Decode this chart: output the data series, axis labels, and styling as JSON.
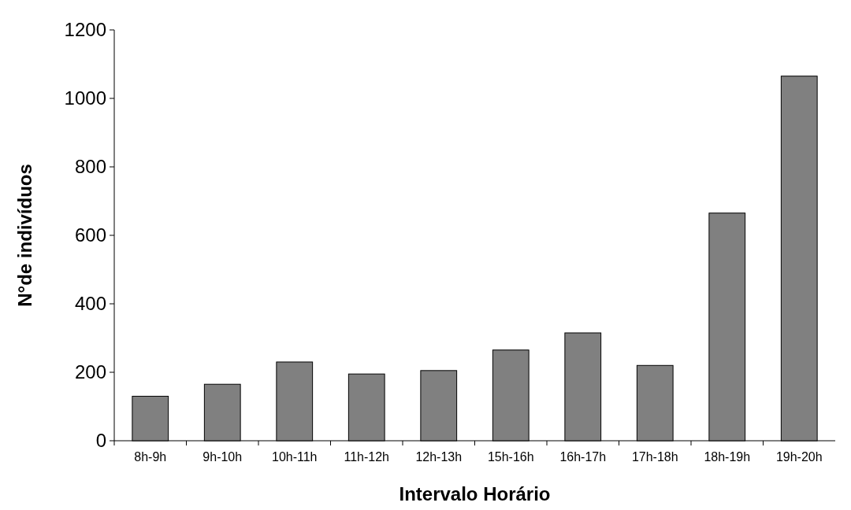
{
  "chart_data": {
    "type": "bar",
    "xlabel": "Intervalo Horário",
    "ylabel": "N°de indivíduos",
    "categories": [
      "8h-9h",
      "9h-10h",
      "10h-11h",
      "11h-12h",
      "12h-13h",
      "15h-16h",
      "16h-17h",
      "17h-18h",
      "18h-19h",
      "19h-20h"
    ],
    "values": [
      130,
      165,
      230,
      195,
      205,
      265,
      315,
      220,
      665,
      1065
    ],
    "color": "#808080",
    "ylim": [
      0,
      1200
    ],
    "yticks": [
      0,
      200,
      400,
      600,
      800,
      1000,
      1200
    ],
    "grid": false
  }
}
